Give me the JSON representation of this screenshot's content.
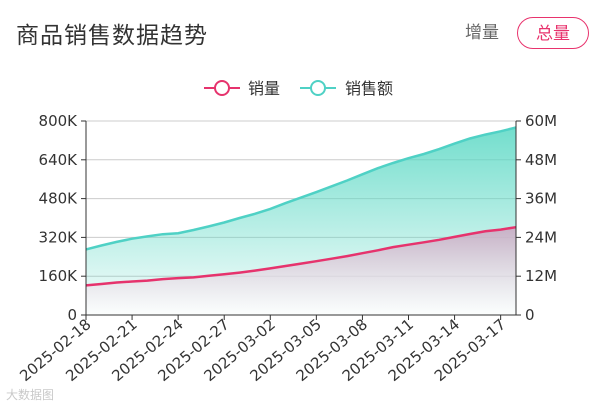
{
  "header": {
    "title": "商品销售数据趋势",
    "toggle_delta": "增量",
    "toggle_total": "总量"
  },
  "watermark": "大数据图",
  "colors": {
    "sales": "#e6336d",
    "revenue": "#4fd1c5",
    "axis": "#333333",
    "grid": "#cccccc"
  },
  "chart_data": {
    "type": "area",
    "title": "商品销售数据趋势",
    "x": [
      "2025-02-18",
      "2025-02-19",
      "2025-02-20",
      "2025-02-21",
      "2025-02-22",
      "2025-02-23",
      "2025-02-24",
      "2025-02-25",
      "2025-02-26",
      "2025-02-27",
      "2025-02-28",
      "2025-03-01",
      "2025-03-02",
      "2025-03-03",
      "2025-03-04",
      "2025-03-05",
      "2025-03-06",
      "2025-03-07",
      "2025-03-08",
      "2025-03-09",
      "2025-03-10",
      "2025-03-11",
      "2025-03-12",
      "2025-03-13",
      "2025-03-14",
      "2025-03-15",
      "2025-03-16",
      "2025-03-17",
      "2025-03-18"
    ],
    "x_tick_labels": [
      "2025-02-18",
      "2025-02-21",
      "2025-02-24",
      "2025-02-27",
      "2025-03-02",
      "2025-03-05",
      "2025-03-08",
      "2025-03-11",
      "2025-03-14",
      "2025-03-17"
    ],
    "series": [
      {
        "name": "销量",
        "axis": "left",
        "values": [
          122000,
          128000,
          134000,
          138000,
          142000,
          148000,
          152000,
          155000,
          162000,
          168000,
          175000,
          183000,
          192000,
          202000,
          212000,
          222000,
          232000,
          243000,
          255000,
          267000,
          280000,
          290000,
          300000,
          310000,
          322000,
          334000,
          345000,
          352000,
          362000
        ]
      },
      {
        "name": "销售额",
        "axis": "right",
        "values": [
          20300000,
          21500000,
          22600000,
          23600000,
          24300000,
          25000000,
          25300000,
          26300000,
          27400000,
          28600000,
          30000000,
          31300000,
          32800000,
          34600000,
          36300000,
          38000000,
          39800000,
          41600000,
          43500000,
          45400000,
          47000000,
          48500000,
          49800000,
          51300000,
          53000000,
          54600000,
          55800000,
          56800000,
          58000000
        ]
      }
    ],
    "y_left": {
      "range": [
        0,
        800000
      ],
      "ticks": [
        "0",
        "160K",
        "320K",
        "480K",
        "640K",
        "800K"
      ]
    },
    "y_right": {
      "range": [
        0,
        60000000
      ],
      "ticks": [
        "0",
        "12M",
        "24M",
        "36M",
        "48M",
        "60M"
      ]
    },
    "grid": true,
    "legend": {
      "position": "top-center",
      "entries": [
        "销量",
        "销售额"
      ]
    }
  }
}
